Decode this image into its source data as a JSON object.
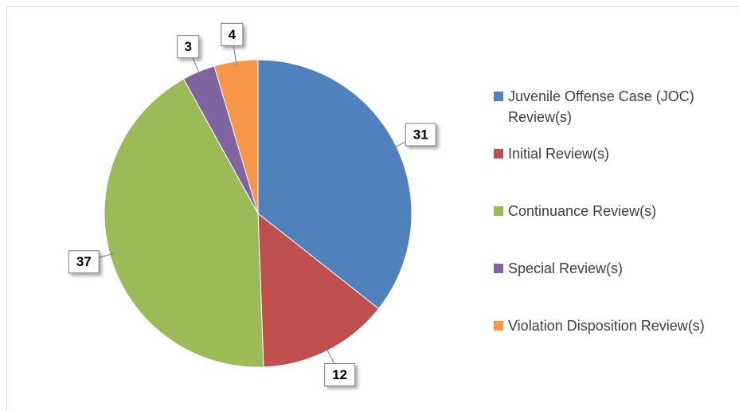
{
  "chart_data": {
    "type": "pie",
    "categories": [
      "Juvenile Offense Case (JOC) Review(s)",
      "Initial Review(s)",
      "Continuance Review(s)",
      "Special Review(s)",
      "Violation Disposition Review(s)"
    ],
    "values": [
      31,
      12,
      37,
      3,
      4
    ],
    "colors": [
      "#4f81bd",
      "#c0504d",
      "#9bbb59",
      "#8064a2",
      "#f79646"
    ]
  }
}
